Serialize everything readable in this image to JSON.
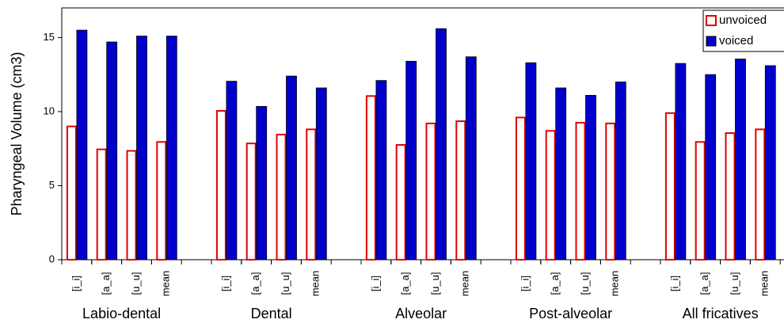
{
  "chart_data": {
    "type": "bar",
    "y_label": "Pharyngeal Volume (cm3)",
    "categories": [
      "[i_i]",
      "[a_a]",
      "[u_u]",
      "mean",
      "[i_i]",
      "[a_a]",
      "[u_u]",
      "mean",
      "[i_i]",
      "[a_a]",
      "[u_u]",
      "mean",
      "[i_i]",
      "[a_a]",
      "[u_u]",
      "mean",
      "[i_i]",
      "[a_a]",
      "[u_u]",
      "mean"
    ],
    "groups": [
      "Labio-dental",
      "Dental",
      "Alveolar",
      "Post-alveolar",
      "All fricatives"
    ],
    "series": [
      {
        "name": "unvoiced",
        "color": "#e00000",
        "values": [
          9.0,
          7.45,
          7.35,
          7.95,
          10.05,
          7.85,
          8.45,
          8.8,
          11.05,
          7.75,
          9.2,
          9.35,
          9.6,
          8.7,
          9.25,
          9.2,
          9.9,
          7.95,
          8.55,
          8.8
        ]
      },
      {
        "name": "voiced",
        "color": "#0000cc",
        "values": [
          15.5,
          14.7,
          15.1,
          15.1,
          12.05,
          10.35,
          12.4,
          11.6,
          12.1,
          13.4,
          15.6,
          13.7,
          13.3,
          11.6,
          11.1,
          12.0,
          13.25,
          12.5,
          13.55,
          13.1
        ]
      }
    ],
    "ylim": [
      0,
      17
    ],
    "yticks": [
      0,
      5,
      10,
      15
    ],
    "legend": "top-right"
  }
}
